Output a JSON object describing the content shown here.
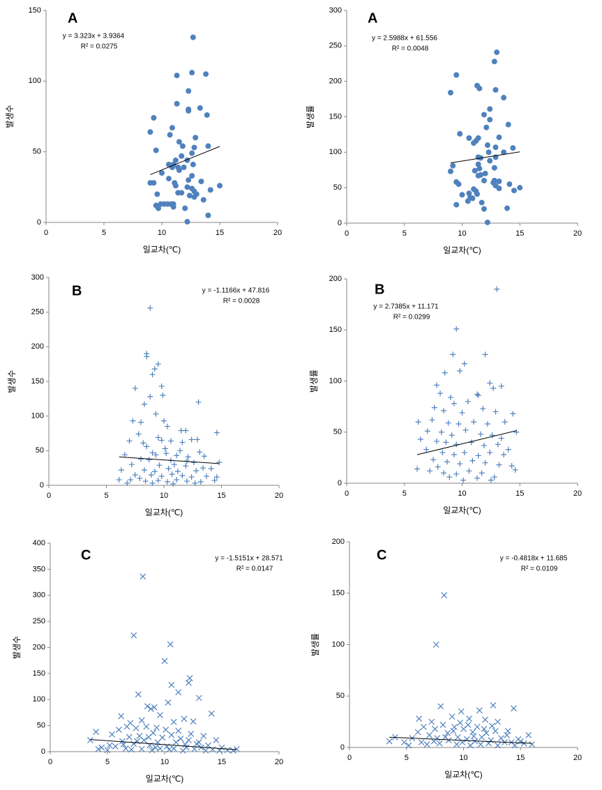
{
  "chart_data": [
    {
      "type": "scatter",
      "title": "A",
      "annotations": [
        "y = 3.323x + 3.9364",
        "R² = 0.0275"
      ],
      "x_label": "일교차(℃)",
      "y_label": "발생수",
      "marker": "circle",
      "color": "#4f81bd",
      "xlim": [
        0,
        20
      ],
      "ylim": [
        0,
        150
      ],
      "xticks": [
        0,
        5,
        10,
        15,
        20
      ],
      "yticks": [
        0,
        50,
        100,
        150
      ],
      "trendline": {
        "slope": 3.323,
        "intercept": 3.9364,
        "color": "#000000"
      },
      "x": [
        12.7,
        11.3,
        12.6,
        13.8,
        12.3,
        11.3,
        12.3,
        12.3,
        13.3,
        13.9,
        9.3,
        10.9,
        9.0,
        10.7,
        11.5,
        11.8,
        12.9,
        14.0,
        9.5,
        12.8,
        12.6,
        11.7,
        12.2,
        11.2,
        10.6,
        11.0,
        11.4,
        11.9,
        12.7,
        11.5,
        10.0,
        10.9,
        12.6,
        13.4,
        9.0,
        9.3,
        11.1,
        12.3,
        10.6,
        11.4,
        11.7,
        11.2,
        12.6,
        12.8,
        12.2,
        14.2,
        15.0,
        13.0,
        12.4,
        12.8,
        9.6,
        13.6,
        9.9,
        10.2,
        10.5,
        10.8,
        9.5,
        11.0,
        11.0,
        9.7,
        12.0,
        14.0,
        12.2
      ],
      "y": [
        131,
        104,
        106,
        105,
        93,
        84,
        80,
        79,
        81,
        76,
        74,
        67,
        64,
        62,
        57,
        54,
        60,
        54,
        51,
        53,
        49,
        47,
        44,
        44,
        41,
        41,
        39,
        39,
        41,
        37,
        35,
        39,
        33,
        29,
        28,
        28,
        28,
        30,
        31,
        21,
        21,
        26,
        24,
        22,
        25,
        23,
        26,
        20,
        19,
        18,
        20,
        16,
        13,
        13,
        13,
        13,
        12,
        11,
        13,
        10,
        10,
        5,
        0.5
      ]
    },
    {
      "type": "scatter",
      "title": "A",
      "annotations": [
        "y = 2.5988x + 61.556",
        "R² = 0.0048"
      ],
      "x_label": "일교차(℃)",
      "y_label": "발생률",
      "marker": "circle",
      "color": "#4f81bd",
      "xlim": [
        0,
        20
      ],
      "ylim": [
        0,
        300
      ],
      "xticks": [
        0,
        5,
        10,
        15,
        20
      ],
      "yticks": [
        0,
        50,
        100,
        150,
        200,
        250,
        300
      ],
      "trendline": {
        "slope": 2.5988,
        "intercept": 61.556,
        "color": "#000000"
      },
      "x": [
        13.0,
        12.8,
        9.5,
        12.9,
        11.5,
        11.3,
        9.0,
        13.6,
        12.4,
        11.9,
        9.8,
        12.4,
        12.1,
        14.0,
        11.4,
        11.2,
        10.6,
        12.2,
        13.2,
        12.9,
        14.4,
        11.0,
        13.6,
        12.3,
        11.4,
        11.6,
        12.9,
        12.4,
        9.2,
        11.4,
        11.5,
        11.1,
        12.8,
        12.0,
        9.0,
        11.6,
        12.8,
        11.4,
        12.7,
        13.2,
        9.5,
        9.7,
        11.9,
        12.9,
        13.2,
        14.1,
        14.5,
        15.0,
        11.2,
        11.0,
        10.6,
        11.3,
        10.0,
        10.7,
        10.9,
        10.5,
        11.7,
        9.5,
        11.9,
        13.9,
        12.2
      ],
      "y": [
        241,
        228,
        209,
        188,
        190,
        194,
        184,
        177,
        161,
        153,
        126,
        146,
        135,
        139,
        120,
        116,
        120,
        110,
        121,
        107,
        106,
        113,
        100,
        100,
        93,
        92,
        93,
        88,
        81,
        83,
        77,
        74,
        78,
        70,
        73,
        68,
        60,
        67,
        57,
        59,
        58,
        55,
        60,
        53,
        49,
        55,
        46,
        50,
        45,
        48,
        42,
        41,
        40,
        36,
        35,
        31,
        29,
        26,
        20,
        21,
        1
      ]
    },
    {
      "type": "scatter",
      "title": "B",
      "annotations": [
        "y = -1.1166x + 47.816",
        "R² = 0.0028"
      ],
      "x_label": "일교차(℃)",
      "y_label": "발생수",
      "marker": "plus",
      "color": "#4f81bd",
      "xlim": [
        0,
        20
      ],
      "ylim": [
        0,
        300
      ],
      "xticks": [
        0,
        5,
        10,
        15,
        20
      ],
      "yticks": [
        0,
        50,
        100,
        150,
        200,
        250,
        300
      ],
      "trendline": {
        "slope": -1.1166,
        "intercept": 47.816,
        "color": "#000000"
      },
      "x": [
        8.8,
        8.5,
        8.5,
        9.5,
        9.2,
        9.0,
        9.8,
        9.9,
        7.5,
        8.8,
        13,
        8.3,
        9.3,
        7.3,
        8,
        10,
        10.3,
        11.5,
        11.9,
        7.8,
        14.6,
        7,
        9.5,
        9.8,
        10.6,
        12.4,
        12.9,
        8.2,
        11.6,
        8.5,
        10.1,
        11.4,
        13.1,
        9,
        6.6,
        9.3,
        10.2,
        11.1,
        12.1,
        13.5,
        8,
        8.7,
        10.6,
        12,
        12.6,
        14.8,
        7.2,
        9.6,
        10.9,
        11.9,
        13.4,
        6.3,
        8.3,
        9.2,
        10.4,
        11.2,
        12.8,
        14.1,
        7.5,
        8.9,
        9.8,
        10.7,
        11.6,
        12.4,
        13.7,
        6.1,
        7.1,
        8.4,
        9.5,
        10.3,
        11.1,
        12,
        13.2,
        14.4,
        6.8,
        9,
        10.8,
        12.7,
        7.9,
        14.6
      ],
      "y": [
        256,
        190,
        186,
        175,
        168,
        160,
        143,
        130,
        140,
        128,
        120,
        117,
        103,
        93,
        91,
        93,
        85,
        79,
        79,
        74,
        76,
        64,
        69,
        65,
        64,
        66,
        66,
        61,
        62,
        56,
        53,
        50,
        48,
        47,
        44,
        44,
        46,
        43,
        41,
        42,
        38,
        37,
        36,
        35,
        33,
        33,
        30,
        29,
        30,
        28,
        25,
        22,
        22,
        20,
        24,
        20,
        21,
        24,
        15,
        15,
        13,
        16,
        14,
        12,
        13,
        8,
        8,
        6,
        7,
        5,
        8,
        6,
        5,
        7,
        3,
        3,
        2,
        3,
        10,
        12
      ]
    },
    {
      "type": "scatter",
      "title": "B",
      "annotations": [
        "y = 2.7385x + 11.171",
        "R² = 0.0299"
      ],
      "x_label": "일교차(℃)",
      "y_label": "발생률",
      "marker": "plus",
      "color": "#4f81bd",
      "xlim": [
        0,
        20
      ],
      "ylim": [
        0,
        200
      ],
      "xticks": [
        0,
        5,
        10,
        15,
        20
      ],
      "yticks": [
        0,
        50,
        100,
        150,
        200
      ],
      "trendline": {
        "slope": 2.7385,
        "intercept": 11.171,
        "color": "#000000"
      },
      "x": [
        13,
        9.5,
        9.2,
        12,
        10.2,
        9.8,
        8.5,
        7.8,
        12.4,
        12.7,
        13.4,
        8.1,
        11.3,
        11.4,
        9,
        10.5,
        7.6,
        9.3,
        11.8,
        12.9,
        14.4,
        8.4,
        10,
        6.2,
        7.4,
        8.8,
        9.7,
        11,
        12.2,
        13.7,
        14.7,
        7,
        8.2,
        9.1,
        10.3,
        11.6,
        12.6,
        13.4,
        6.4,
        7.8,
        8.6,
        9.5,
        10.8,
        11.9,
        13.1,
        14,
        6.9,
        8.3,
        9.3,
        10.2,
        11.4,
        12.4,
        13.6,
        7.5,
        8.7,
        9.8,
        10.9,
        12,
        13.2,
        14.3,
        6.1,
        7.2,
        8.4,
        9.5,
        10.6,
        11.7,
        12.8,
        14.6,
        8.9,
        10.1,
        11.3,
        12.5,
        7.9
      ],
      "y": [
        190,
        151,
        126,
        126,
        117,
        110,
        108,
        96,
        98,
        93,
        95,
        88,
        87,
        86,
        84,
        80,
        74,
        78,
        73,
        70,
        68,
        71,
        69,
        60,
        62,
        59,
        58,
        60,
        58,
        60,
        50,
        51,
        50,
        47,
        52,
        48,
        47,
        44,
        43,
        41,
        40,
        38,
        40,
        37,
        38,
        33,
        33,
        30,
        28,
        30,
        27,
        30,
        28,
        23,
        21,
        19,
        22,
        20,
        18,
        17,
        14,
        12,
        10,
        9,
        12,
        10,
        6,
        13,
        6,
        3,
        5,
        3,
        16
      ]
    },
    {
      "type": "scatter",
      "title": "C",
      "annotations": [
        "y = -1.5151x + 28.571",
        "R² = 0.0147"
      ],
      "x_label": "일교차(℃)",
      "y_label": "발생수",
      "marker": "x",
      "color": "#4f81bd",
      "xlim": [
        0,
        20
      ],
      "ylim": [
        0,
        400
      ],
      "xticks": [
        0,
        5,
        10,
        15,
        20
      ],
      "yticks": [
        0,
        50,
        100,
        150,
        200,
        250,
        300,
        350,
        400
      ],
      "trendline": {
        "slope": -1.5151,
        "intercept": 28.571,
        "color": "#000000"
      },
      "x": [
        8.1,
        7.3,
        10.5,
        10,
        12.2,
        12.1,
        10.6,
        11.2,
        13,
        7.7,
        14.1,
        10.3,
        8.5,
        9.1,
        8.8,
        6.2,
        11.7,
        9.6,
        7,
        8,
        10.8,
        12.5,
        4,
        5.4,
        6,
        6.7,
        7.5,
        8.4,
        9.3,
        10.1,
        11.2,
        12.3,
        13.4,
        14.5,
        3.5,
        4.5,
        5,
        5.7,
        6.3,
        6.9,
        7.3,
        7.8,
        8.2,
        8.7,
        9,
        9.4,
        9.8,
        10.2,
        10.6,
        11,
        11.4,
        11.9,
        12.8,
        13.2,
        13.8,
        14.2,
        15,
        15.5,
        16,
        16.3,
        5.2,
        6.6,
        7.1,
        8,
        8.9,
        9.6,
        10.4,
        11.6,
        12.6,
        13.6,
        14.8,
        7.6,
        8.6,
        9.2,
        10.8,
        11.8,
        12.1,
        13,
        6.4,
        4.2
      ],
      "y": [
        336,
        223,
        206,
        174,
        141,
        132,
        128,
        114,
        103,
        110,
        73,
        94,
        87,
        85,
        82,
        68,
        63,
        70,
        55,
        60,
        57,
        58,
        38,
        33,
        42,
        48,
        45,
        48,
        46,
        42,
        40,
        34,
        30,
        22,
        22,
        8,
        3,
        10,
        20,
        28,
        15,
        30,
        22,
        12,
        36,
        18,
        27,
        10,
        32,
        18,
        25,
        8,
        15,
        8,
        12,
        4,
        8,
        3,
        2,
        5,
        12,
        6,
        4,
        5,
        3,
        6,
        4,
        2,
        5,
        2,
        2,
        20,
        28,
        8,
        6,
        14,
        22,
        18,
        14,
        5
      ]
    },
    {
      "type": "scatter",
      "title": "C",
      "annotations": [
        "y = -0.4818x + 11.685",
        "R² = 0.0109"
      ],
      "x_label": "일교차(℃)",
      "y_label": "발생률",
      "marker": "x",
      "color": "#4f81bd",
      "xlim": [
        0,
        20
      ],
      "ylim": [
        0,
        200
      ],
      "xticks": [
        0,
        5,
        10,
        15,
        20
      ],
      "yticks": [
        0,
        50,
        100,
        150,
        200
      ],
      "trendline": {
        "slope": -0.4818,
        "intercept": 11.685,
        "color": "#000000"
      },
      "x": [
        8.3,
        7.6,
        8,
        12.6,
        9.8,
        11.4,
        14.4,
        6.1,
        7.2,
        9,
        10.5,
        11.9,
        13,
        3.5,
        4,
        4.8,
        5.5,
        6,
        6.5,
        7,
        7.5,
        8.2,
        8.6,
        9.2,
        9.5,
        10,
        10.3,
        10.8,
        11.2,
        11.6,
        12,
        12.4,
        12.8,
        13.3,
        13.8,
        14.2,
        14.8,
        15.3,
        15.7,
        16,
        5.2,
        6.3,
        6.8,
        7.4,
        7.9,
        8.7,
        9.4,
        9.9,
        10.6,
        11,
        11.5,
        12.2,
        13,
        13.6,
        14.5,
        15,
        8.4,
        9.7,
        10.9,
        12.5,
        11.8,
        7.7,
        9.1,
        10.4,
        13.9
      ],
      "y": [
        148,
        100,
        40,
        41,
        35,
        36,
        38,
        28,
        25,
        30,
        28,
        27,
        25,
        6,
        10,
        5,
        9,
        15,
        20,
        12,
        18,
        22,
        14,
        20,
        10,
        18,
        8,
        15,
        20,
        10,
        14,
        7,
        16,
        9,
        12,
        5,
        8,
        4,
        12,
        3,
        2,
        5,
        3,
        6,
        4,
        7,
        3,
        5,
        2,
        6,
        3,
        4,
        2,
        5,
        2,
        6,
        10,
        24,
        11,
        21,
        18,
        9,
        16,
        22,
        16
      ]
    }
  ]
}
